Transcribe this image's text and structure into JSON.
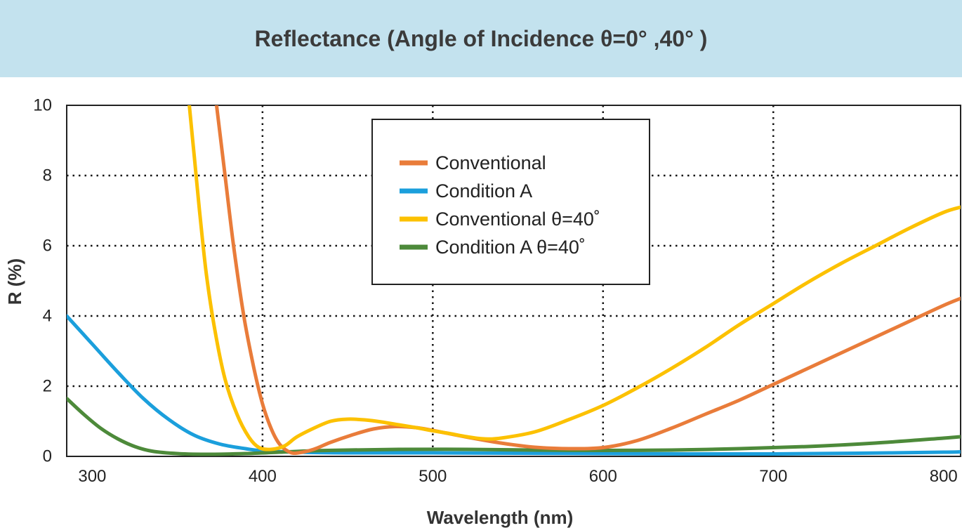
{
  "header": {
    "title": "Reflectance (Angle of Incidence θ=0° ,40° )"
  },
  "chart_data": {
    "type": "line",
    "xlabel": "Wavelength (nm)",
    "ylabel": "R (%)",
    "xlim": [
      285,
      810
    ],
    "ylim": [
      0,
      10
    ],
    "x_ticks": [
      "300",
      "400",
      "500",
      "600",
      "700",
      "800"
    ],
    "y_ticks": [
      "0",
      "2",
      "4",
      "6",
      "8",
      "10"
    ],
    "grid": "dotted at 400, 500, 600, 700 nm and R = 2, 4, 6, 8 %",
    "legend_position": "top-center",
    "series": [
      {
        "name": "Conventional",
        "color": "#e97c3a",
        "points": [
          [
            373,
            10
          ],
          [
            378,
            8
          ],
          [
            383,
            6
          ],
          [
            389,
            4
          ],
          [
            395,
            2.5
          ],
          [
            400,
            1.5
          ],
          [
            405,
            0.8
          ],
          [
            410,
            0.35
          ],
          [
            416,
            0.12
          ],
          [
            421,
            0.1
          ],
          [
            430,
            0.2
          ],
          [
            440,
            0.4
          ],
          [
            452,
            0.6
          ],
          [
            465,
            0.78
          ],
          [
            478,
            0.85
          ],
          [
            490,
            0.82
          ],
          [
            500,
            0.74
          ],
          [
            520,
            0.55
          ],
          [
            540,
            0.38
          ],
          [
            560,
            0.26
          ],
          [
            580,
            0.22
          ],
          [
            600,
            0.25
          ],
          [
            620,
            0.45
          ],
          [
            640,
            0.8
          ],
          [
            660,
            1.2
          ],
          [
            680,
            1.6
          ],
          [
            700,
            2.05
          ],
          [
            720,
            2.5
          ],
          [
            740,
            2.95
          ],
          [
            760,
            3.4
          ],
          [
            780,
            3.85
          ],
          [
            800,
            4.3
          ],
          [
            810,
            4.5
          ]
        ]
      },
      {
        "name": "Condition A",
        "color": "#1b9fdc",
        "points": [
          [
            285,
            4
          ],
          [
            300,
            3.2
          ],
          [
            315,
            2.4
          ],
          [
            330,
            1.65
          ],
          [
            345,
            1.05
          ],
          [
            360,
            0.6
          ],
          [
            375,
            0.35
          ],
          [
            390,
            0.22
          ],
          [
            400,
            0.16
          ],
          [
            420,
            0.12
          ],
          [
            450,
            0.1
          ],
          [
            500,
            0.1
          ],
          [
            550,
            0.09
          ],
          [
            600,
            0.08
          ],
          [
            650,
            0.07
          ],
          [
            700,
            0.07
          ],
          [
            750,
            0.09
          ],
          [
            800,
            0.12
          ],
          [
            810,
            0.13
          ]
        ]
      },
      {
        "name": "Conventional θ=40˚",
        "color": "#fcc100",
        "points": [
          [
            357,
            10
          ],
          [
            360,
            8.5
          ],
          [
            363,
            7
          ],
          [
            367,
            5.2
          ],
          [
            372,
            3.6
          ],
          [
            378,
            2.2
          ],
          [
            385,
            1.2
          ],
          [
            392,
            0.55
          ],
          [
            398,
            0.25
          ],
          [
            405,
            0.2
          ],
          [
            413,
            0.3
          ],
          [
            420,
            0.55
          ],
          [
            430,
            0.8
          ],
          [
            440,
            1
          ],
          [
            450,
            1.06
          ],
          [
            460,
            1.04
          ],
          [
            470,
            0.98
          ],
          [
            480,
            0.9
          ],
          [
            490,
            0.82
          ],
          [
            500,
            0.73
          ],
          [
            510,
            0.65
          ],
          [
            520,
            0.56
          ],
          [
            530,
            0.5
          ],
          [
            540,
            0.52
          ],
          [
            560,
            0.7
          ],
          [
            580,
            1.05
          ],
          [
            600,
            1.45
          ],
          [
            620,
            1.95
          ],
          [
            640,
            2.5
          ],
          [
            660,
            3.1
          ],
          [
            680,
            3.75
          ],
          [
            700,
            4.35
          ],
          [
            720,
            4.95
          ],
          [
            740,
            5.5
          ],
          [
            760,
            6
          ],
          [
            780,
            6.5
          ],
          [
            800,
            6.95
          ],
          [
            810,
            7.1
          ]
        ]
      },
      {
        "name": "Condition A θ=40˚",
        "color": "#4d8a3a",
        "points": [
          [
            285,
            1.65
          ],
          [
            295,
            1.2
          ],
          [
            305,
            0.8
          ],
          [
            315,
            0.5
          ],
          [
            325,
            0.28
          ],
          [
            335,
            0.15
          ],
          [
            350,
            0.08
          ],
          [
            370,
            0.06
          ],
          [
            390,
            0.08
          ],
          [
            410,
            0.12
          ],
          [
            430,
            0.16
          ],
          [
            450,
            0.18
          ],
          [
            480,
            0.2
          ],
          [
            520,
            0.2
          ],
          [
            560,
            0.18
          ],
          [
            600,
            0.17
          ],
          [
            640,
            0.18
          ],
          [
            680,
            0.22
          ],
          [
            720,
            0.28
          ],
          [
            760,
            0.38
          ],
          [
            800,
            0.52
          ],
          [
            810,
            0.56
          ]
        ]
      }
    ]
  }
}
